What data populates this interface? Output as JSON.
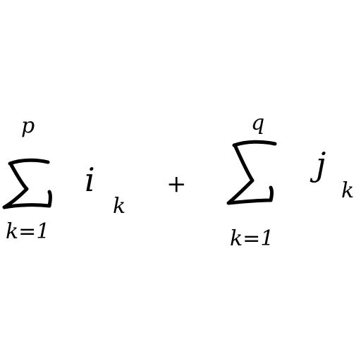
{
  "expression": {
    "term1": {
      "operator": "sigma",
      "upper_limit": "p",
      "lower_limit": "k=1",
      "summand": "i",
      "subscript": "k"
    },
    "plus_sign": "+",
    "term2": {
      "operator": "sigma",
      "upper_limit": "q",
      "lower_limit": "k=1",
      "summand": "j",
      "subscript": "k"
    }
  },
  "ink_color": "#000000",
  "background_color": "#ffffff"
}
